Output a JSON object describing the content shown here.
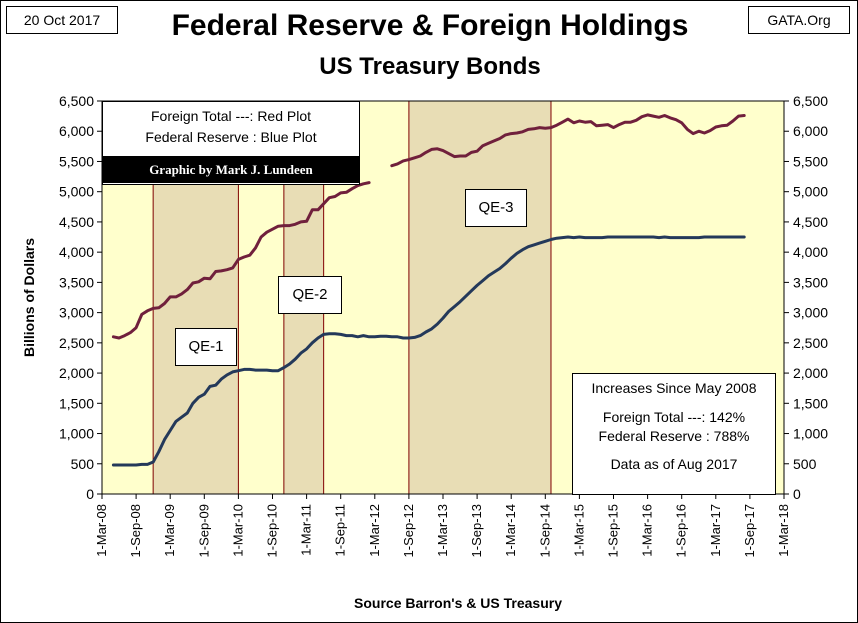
{
  "header": {
    "date": "20 Oct 2017",
    "site": "GATA.Org",
    "title": "Federal Reserve & Foreign Holdings",
    "subtitle": "US Treasury Bonds"
  },
  "legend": {
    "line1": "Foreign Total ---: Red Plot",
    "line2": "Federal Reserve : Blue Plot",
    "credit": "Graphic by Mark J. Lundeen"
  },
  "stats": {
    "heading": "Increases Since May 2008",
    "foreign": "Foreign Total ---:  142%",
    "fed": "Federal Reserve :  788%",
    "as_of": "Data as of Aug 2017"
  },
  "colors": {
    "plot_background": "#FFFFCC",
    "qe_shade": "#E8DDB5",
    "qe_border": "#800000",
    "foreign_line": "#70203C",
    "fed_line": "#24395A"
  },
  "chart_data": {
    "type": "line",
    "title": "Federal Reserve & Foreign Holdings",
    "subtitle": "US Treasury Bonds",
    "xlabel": "Source Barron's & US Treasury",
    "ylabel": "Billions  of  Dollars",
    "ylim": [
      0,
      6500
    ],
    "yticks": [
      0,
      500,
      1000,
      1500,
      2000,
      2500,
      3000,
      3500,
      4000,
      4500,
      5000,
      5500,
      6000,
      6500
    ],
    "ytick_labels": [
      "0",
      "500",
      "1,000",
      "1,500",
      "2,000",
      "2,500",
      "3,000",
      "3,500",
      "4,000",
      "4,500",
      "5,000",
      "5,500",
      "6,000",
      "6,500"
    ],
    "xlim": [
      "2008-03",
      "2018-03"
    ],
    "xtick_labels": [
      "1-Mar-08",
      "1-Sep-08",
      "1-Mar-09",
      "1-Sep-09",
      "1-Mar-10",
      "1-Sep-10",
      "1-Mar-11",
      "1-Sep-11",
      "1-Mar-12",
      "1-Sep-12",
      "1-Mar-13",
      "1-Sep-13",
      "1-Mar-14",
      "1-Sep-14",
      "1-Mar-15",
      "1-Sep-15",
      "1-Mar-16",
      "1-Sep-16",
      "1-Mar-17",
      "1-Sep-17",
      "1-Mar-18"
    ],
    "grid": false,
    "shaded_periods": [
      {
        "label": "QE-1",
        "start": "2008-12",
        "end": "2010-03"
      },
      {
        "label": "QE-2",
        "start": "2010-11",
        "end": "2011-06"
      },
      {
        "label": "QE-3",
        "start": "2012-09",
        "end": "2014-10"
      }
    ],
    "series": [
      {
        "color": "#70203C",
        "points": [
          [
            "2008-05",
            2600
          ],
          [
            "2008-06",
            2580
          ],
          [
            "2008-07",
            2620
          ],
          [
            "2008-08",
            2670
          ],
          [
            "2008-09",
            2750
          ],
          [
            "2008-10",
            2970
          ],
          [
            "2008-11",
            3030
          ],
          [
            "2008-12",
            3070
          ],
          [
            "2009-01",
            3080
          ],
          [
            "2009-02",
            3150
          ],
          [
            "2009-03",
            3260
          ],
          [
            "2009-04",
            3260
          ],
          [
            "2009-05",
            3310
          ],
          [
            "2009-06",
            3380
          ],
          [
            "2009-07",
            3490
          ],
          [
            "2009-08",
            3510
          ],
          [
            "2009-09",
            3570
          ],
          [
            "2009-10",
            3560
          ],
          [
            "2009-11",
            3680
          ],
          [
            "2009-12",
            3690
          ],
          [
            "2010-01",
            3710
          ],
          [
            "2010-02",
            3740
          ],
          [
            "2010-03",
            3880
          ],
          [
            "2010-04",
            3920
          ],
          [
            "2010-05",
            3950
          ],
          [
            "2010-06",
            4070
          ],
          [
            "2010-07",
            4250
          ],
          [
            "2010-08",
            4330
          ],
          [
            "2010-09",
            4380
          ],
          [
            "2010-10",
            4430
          ],
          [
            "2010-11",
            4440
          ],
          [
            "2010-12",
            4440
          ],
          [
            "2011-01",
            4460
          ],
          [
            "2011-02",
            4500
          ],
          [
            "2011-03",
            4510
          ],
          [
            "2011-04",
            4700
          ],
          [
            "2011-05",
            4700
          ],
          [
            "2011-06",
            4800
          ],
          [
            "2011-07",
            4900
          ],
          [
            "2011-08",
            4920
          ],
          [
            "2011-09",
            4980
          ],
          [
            "2011-10",
            4990
          ],
          [
            "2011-11",
            5050
          ],
          [
            "2011-12",
            5100
          ],
          [
            "2012-01",
            5130
          ],
          [
            "2012-02",
            5150
          ],
          null,
          [
            "2012-06",
            5430
          ],
          [
            "2012-07",
            5460
          ],
          [
            "2012-08",
            5510
          ],
          [
            "2012-09",
            5530
          ],
          [
            "2012-10",
            5560
          ],
          [
            "2012-11",
            5590
          ],
          [
            "2012-12",
            5650
          ],
          [
            "2013-01",
            5700
          ],
          [
            "2013-02",
            5710
          ],
          [
            "2013-03",
            5680
          ],
          [
            "2013-04",
            5630
          ],
          [
            "2013-05",
            5580
          ],
          [
            "2013-06",
            5590
          ],
          [
            "2013-07",
            5590
          ],
          [
            "2013-08",
            5650
          ],
          [
            "2013-09",
            5670
          ],
          [
            "2013-10",
            5760
          ],
          [
            "2013-11",
            5800
          ],
          [
            "2013-12",
            5840
          ],
          [
            "2014-01",
            5880
          ],
          [
            "2014-02",
            5940
          ],
          [
            "2014-03",
            5960
          ],
          [
            "2014-04",
            5970
          ],
          [
            "2014-05",
            5990
          ],
          [
            "2014-06",
            6030
          ],
          [
            "2014-07",
            6040
          ],
          [
            "2014-08",
            6060
          ],
          [
            "2014-09",
            6050
          ],
          [
            "2014-10",
            6060
          ],
          [
            "2014-11",
            6100
          ],
          [
            "2014-12",
            6150
          ],
          [
            "2015-01",
            6200
          ],
          [
            "2015-02",
            6140
          ],
          [
            "2015-03",
            6170
          ],
          [
            "2015-04",
            6150
          ],
          [
            "2015-05",
            6160
          ],
          [
            "2015-06",
            6090
          ],
          [
            "2015-07",
            6100
          ],
          [
            "2015-08",
            6110
          ],
          [
            "2015-09",
            6060
          ],
          [
            "2015-10",
            6110
          ],
          [
            "2015-11",
            6150
          ],
          [
            "2015-12",
            6150
          ],
          [
            "2016-01",
            6180
          ],
          [
            "2016-02",
            6240
          ],
          [
            "2016-03",
            6270
          ],
          [
            "2016-04",
            6250
          ],
          [
            "2016-05",
            6230
          ],
          [
            "2016-06",
            6260
          ],
          [
            "2016-07",
            6220
          ],
          [
            "2016-08",
            6190
          ],
          [
            "2016-09",
            6140
          ],
          [
            "2016-10",
            6030
          ],
          [
            "2016-11",
            5960
          ],
          [
            "2016-12",
            6000
          ],
          [
            "2017-01",
            5970
          ],
          [
            "2017-02",
            6010
          ],
          [
            "2017-03",
            6070
          ],
          [
            "2017-04",
            6090
          ],
          [
            "2017-05",
            6100
          ],
          [
            "2017-06",
            6170
          ],
          [
            "2017-07",
            6250
          ],
          [
            "2017-08",
            6260
          ]
        ]
      },
      {
        "color": "#24395A",
        "points": [
          [
            "2008-05",
            480
          ],
          [
            "2008-06",
            480
          ],
          [
            "2008-07",
            480
          ],
          [
            "2008-08",
            480
          ],
          [
            "2008-09",
            480
          ],
          [
            "2008-10",
            490
          ],
          [
            "2008-11",
            490
          ],
          [
            "2008-12",
            530
          ],
          [
            "2009-01",
            700
          ],
          [
            "2009-02",
            900
          ],
          [
            "2009-03",
            1050
          ],
          [
            "2009-04",
            1200
          ],
          [
            "2009-05",
            1270
          ],
          [
            "2009-06",
            1340
          ],
          [
            "2009-07",
            1500
          ],
          [
            "2009-08",
            1600
          ],
          [
            "2009-09",
            1650
          ],
          [
            "2009-10",
            1780
          ],
          [
            "2009-11",
            1800
          ],
          [
            "2009-12",
            1900
          ],
          [
            "2010-01",
            1970
          ],
          [
            "2010-02",
            2020
          ],
          [
            "2010-03",
            2040
          ],
          [
            "2010-04",
            2060
          ],
          [
            "2010-05",
            2060
          ],
          [
            "2010-06",
            2050
          ],
          [
            "2010-07",
            2050
          ],
          [
            "2010-08",
            2050
          ],
          [
            "2010-09",
            2040
          ],
          [
            "2010-10",
            2040
          ],
          [
            "2010-11",
            2090
          ],
          [
            "2010-12",
            2150
          ],
          [
            "2011-01",
            2230
          ],
          [
            "2011-02",
            2330
          ],
          [
            "2011-03",
            2400
          ],
          [
            "2011-04",
            2500
          ],
          [
            "2011-05",
            2580
          ],
          [
            "2011-06",
            2640
          ],
          [
            "2011-07",
            2650
          ],
          [
            "2011-08",
            2650
          ],
          [
            "2011-09",
            2640
          ],
          [
            "2011-10",
            2620
          ],
          [
            "2011-11",
            2620
          ],
          [
            "2011-12",
            2600
          ],
          [
            "2012-01",
            2620
          ],
          [
            "2012-02",
            2600
          ],
          [
            "2012-03",
            2600
          ],
          [
            "2012-04",
            2610
          ],
          [
            "2012-05",
            2610
          ],
          [
            "2012-06",
            2600
          ],
          [
            "2012-07",
            2600
          ],
          [
            "2012-08",
            2580
          ],
          [
            "2012-09",
            2580
          ],
          [
            "2012-10",
            2590
          ],
          [
            "2012-11",
            2620
          ],
          [
            "2012-12",
            2680
          ],
          [
            "2013-01",
            2730
          ],
          [
            "2013-02",
            2810
          ],
          [
            "2013-03",
            2910
          ],
          [
            "2013-04",
            3020
          ],
          [
            "2013-05",
            3100
          ],
          [
            "2013-06",
            3180
          ],
          [
            "2013-07",
            3270
          ],
          [
            "2013-08",
            3360
          ],
          [
            "2013-09",
            3450
          ],
          [
            "2013-10",
            3530
          ],
          [
            "2013-11",
            3610
          ],
          [
            "2013-12",
            3670
          ],
          [
            "2014-01",
            3730
          ],
          [
            "2014-02",
            3810
          ],
          [
            "2014-03",
            3900
          ],
          [
            "2014-04",
            3980
          ],
          [
            "2014-05",
            4040
          ],
          [
            "2014-06",
            4090
          ],
          [
            "2014-07",
            4120
          ],
          [
            "2014-08",
            4150
          ],
          [
            "2014-09",
            4180
          ],
          [
            "2014-10",
            4210
          ],
          [
            "2014-11",
            4230
          ],
          [
            "2014-12",
            4240
          ],
          [
            "2015-01",
            4250
          ],
          [
            "2015-02",
            4240
          ],
          [
            "2015-03",
            4250
          ],
          [
            "2015-04",
            4240
          ],
          [
            "2015-05",
            4240
          ],
          [
            "2015-06",
            4240
          ],
          [
            "2015-07",
            4240
          ],
          [
            "2015-08",
            4250
          ],
          [
            "2015-09",
            4250
          ],
          [
            "2015-10",
            4250
          ],
          [
            "2015-11",
            4250
          ],
          [
            "2015-12",
            4250
          ],
          [
            "2016-01",
            4250
          ],
          [
            "2016-02",
            4250
          ],
          [
            "2016-03",
            4250
          ],
          [
            "2016-04",
            4250
          ],
          [
            "2016-05",
            4240
          ],
          [
            "2016-06",
            4250
          ],
          [
            "2016-07",
            4240
          ],
          [
            "2016-08",
            4240
          ],
          [
            "2016-09",
            4240
          ],
          [
            "2016-10",
            4240
          ],
          [
            "2016-11",
            4240
          ],
          [
            "2016-12",
            4240
          ],
          [
            "2017-01",
            4250
          ],
          [
            "2017-02",
            4250
          ],
          [
            "2017-03",
            4250
          ],
          [
            "2017-04",
            4250
          ],
          [
            "2017-05",
            4250
          ],
          [
            "2017-06",
            4250
          ],
          [
            "2017-07",
            4250
          ],
          [
            "2017-08",
            4250
          ]
        ]
      }
    ]
  }
}
